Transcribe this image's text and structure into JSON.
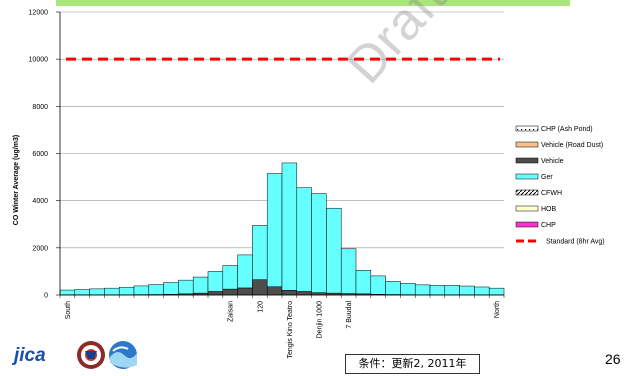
{
  "watermark": "Draft",
  "logos": {
    "jica_text": "jica"
  },
  "condition_label": "条件：更新2, 2011年",
  "page_number": "26",
  "colors": {
    "vehicle": "#4d4d4d",
    "ger": "#66ffff",
    "chp_ash_pond": "#ffffff",
    "vehicle_road_dust": "#f7c08a",
    "cfwh": "#ffffff",
    "hob": "#ffffcc",
    "chp": "#ff33cc",
    "standard": "#ff0000",
    "topbar": "#a8e67a"
  },
  "chart_data": {
    "type": "bar",
    "stacked": true,
    "ylabel": "CO Winter Average (ug/m3)",
    "ylim": [
      0,
      12000
    ],
    "yticks": [
      0,
      2000,
      4000,
      6000,
      8000,
      10000,
      12000
    ],
    "grid": "horizontal",
    "legend_position": "right",
    "bar_count": 30,
    "x_tick_labels": [
      {
        "index": 0,
        "label": "South"
      },
      {
        "index": 11,
        "label": "Zaisan"
      },
      {
        "index": 13,
        "label": "120"
      },
      {
        "index": 15,
        "label": "Tengis Kino Teatro"
      },
      {
        "index": 17,
        "label": "Denjin 1000"
      },
      {
        "index": 19,
        "label": "7 Buudal"
      },
      {
        "index": 29,
        "label": "North"
      }
    ],
    "series": [
      {
        "name": "CHP (Ash Pond)",
        "key": "chp_ash_pond",
        "values": [
          0,
          0,
          0,
          0,
          0,
          0,
          0,
          0,
          0,
          0,
          0,
          0,
          0,
          0,
          0,
          0,
          0,
          0,
          0,
          0,
          0,
          0,
          0,
          0,
          0,
          0,
          0,
          0,
          0,
          0
        ]
      },
      {
        "name": "Vehicle (Road Dust)",
        "key": "vehicle_road_dust",
        "values": [
          0,
          0,
          0,
          0,
          0,
          0,
          0,
          0,
          0,
          0,
          0,
          0,
          0,
          0,
          0,
          0,
          0,
          0,
          0,
          0,
          0,
          0,
          0,
          0,
          0,
          0,
          0,
          0,
          0,
          0
        ]
      },
      {
        "name": "Vehicle",
        "key": "vehicle",
        "values": [
          10,
          10,
          10,
          10,
          10,
          15,
          20,
          30,
          50,
          80,
          150,
          250,
          300,
          650,
          350,
          200,
          150,
          100,
          80,
          60,
          50,
          30,
          20,
          15,
          10,
          10,
          10,
          10,
          10,
          10
        ]
      },
      {
        "name": "Ger",
        "key": "ger",
        "values": [
          200,
          220,
          250,
          280,
          320,
          370,
          420,
          500,
          580,
          680,
          850,
          1000,
          1400,
          2300,
          4800,
          5400,
          4400,
          4200,
          3600,
          1900,
          1000,
          780,
          560,
          480,
          420,
          400,
          400,
          370,
          330,
          280
        ]
      },
      {
        "name": "CFWH",
        "key": "cfwh",
        "values": [
          0,
          0,
          0,
          0,
          0,
          0,
          0,
          0,
          0,
          0,
          0,
          0,
          0,
          0,
          0,
          0,
          0,
          0,
          0,
          0,
          0,
          0,
          0,
          0,
          0,
          0,
          0,
          0,
          0,
          0
        ]
      },
      {
        "name": "HOB",
        "key": "hob",
        "values": [
          0,
          0,
          0,
          0,
          0,
          0,
          0,
          0,
          0,
          0,
          0,
          0,
          0,
          0,
          0,
          0,
          0,
          0,
          0,
          0,
          0,
          0,
          0,
          0,
          0,
          0,
          0,
          0,
          0,
          0
        ]
      },
      {
        "name": "CHP",
        "key": "chp",
        "values": [
          0,
          0,
          0,
          0,
          0,
          0,
          0,
          0,
          0,
          0,
          0,
          0,
          0,
          0,
          0,
          0,
          0,
          0,
          0,
          0,
          0,
          0,
          0,
          0,
          0,
          0,
          0,
          0,
          0,
          0
        ]
      }
    ],
    "standard_line": {
      "name": "Standard (8hr Avg)",
      "value": 10000
    }
  }
}
